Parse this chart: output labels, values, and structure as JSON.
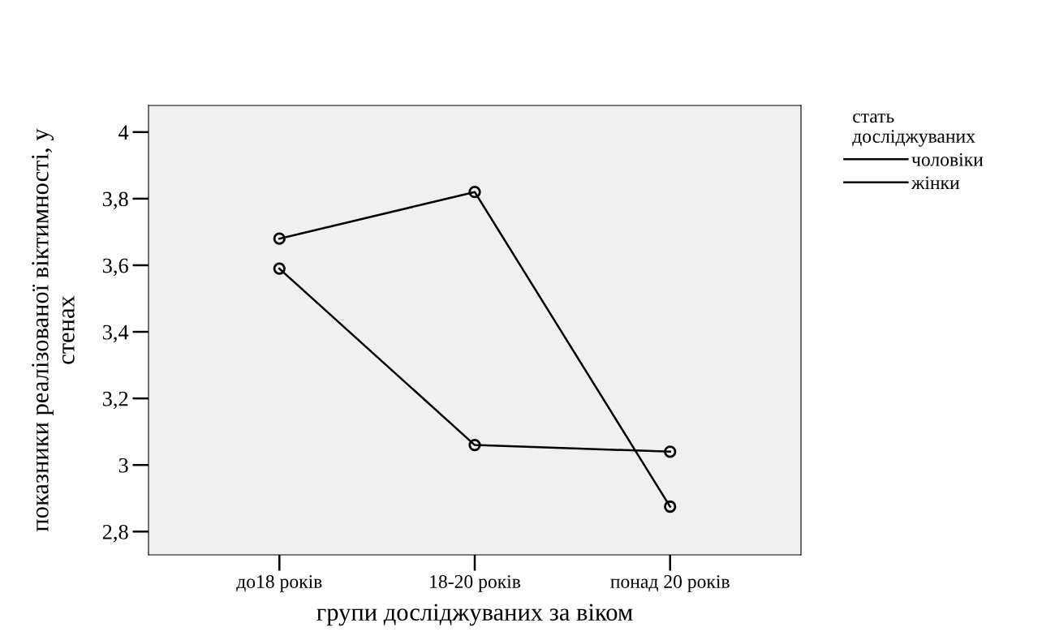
{
  "chart_data": {
    "type": "line",
    "xlabel": "групи досліджуваних за віком",
    "ylabel": "показники реалізованої віктимності, у\nстенах",
    "legend_title": "стать\nдосліджуваних",
    "categories": [
      "до18 років",
      "18-20 років",
      "понад 20 років"
    ],
    "series": [
      {
        "name": "чоловіки",
        "color": "#000000",
        "values": [
          3.68,
          3.82,
          2.875
        ]
      },
      {
        "name": "жінки",
        "color": "#000000",
        "values": [
          3.59,
          3.06,
          3.04
        ]
      }
    ],
    "ylim": [
      2.73,
      4.08
    ],
    "yticks": [
      {
        "value": 2.8,
        "label": "2,8"
      },
      3,
      {
        "value": 3.2,
        "label": "3,2"
      },
      {
        "value": 3.4,
        "label": "3,4"
      },
      {
        "value": 3.6,
        "label": "3,6"
      },
      {
        "value": 3.8,
        "label": "3,8"
      },
      4
    ],
    "grid": false,
    "legend": "top right",
    "marker": "circle",
    "line_style": "solid"
  }
}
